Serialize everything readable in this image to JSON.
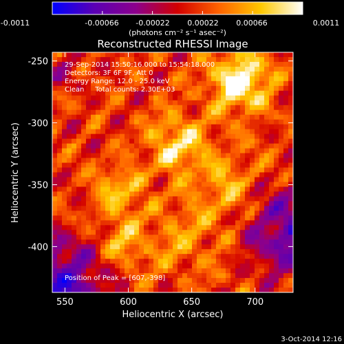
{
  "colorbar": {
    "tick_labels": [
      "-0.0011",
      "-0.00066",
      "-0.00022",
      "0.00022",
      "0.00066",
      "0.0011"
    ],
    "tick_values": [
      -0.0011,
      -0.00066,
      -0.00022,
      0.00022,
      0.00066,
      0.0011
    ],
    "range": [
      -0.0011,
      0.0011
    ],
    "unit_label": "(photons cm⁻² s⁻¹ asec⁻²)",
    "colors": [
      "#0000ff",
      "#5a00b4",
      "#8c008c",
      "#d20000",
      "#ff6400",
      "#ffc800",
      "#ffffff"
    ]
  },
  "chart_data": {
    "type": "heatmap",
    "title": "Reconstructed RHESSI Image",
    "xlabel": "Heliocentric X (arcsec)",
    "ylabel": "Heliocentric Y (arcsec)",
    "xlim": [
      540,
      730
    ],
    "ylim": [
      -437,
      -243
    ],
    "x_ticks": [
      "550",
      "600",
      "650",
      "700"
    ],
    "x_tick_values": [
      550,
      600,
      650,
      700
    ],
    "y_ticks": [
      "-250",
      "-300",
      "-350",
      "-400"
    ],
    "y_tick_values": [
      -250,
      -300,
      -350,
      -400
    ],
    "annotations": [
      "29-Sep-2014 15:50:16.000 to 15:54:18.000",
      "Detectors: 3F 6F 9F, Att 0",
      "Energy Range: 12.0 - 25.0 keV",
      "Clean     Total counts: 2.30E+03"
    ],
    "peak_label": "Position of Peak = [607,-398]",
    "peak": [
      607,
      -398
    ],
    "grid": false
  },
  "footer": {
    "date": "3-Oct-2014 12:16"
  }
}
